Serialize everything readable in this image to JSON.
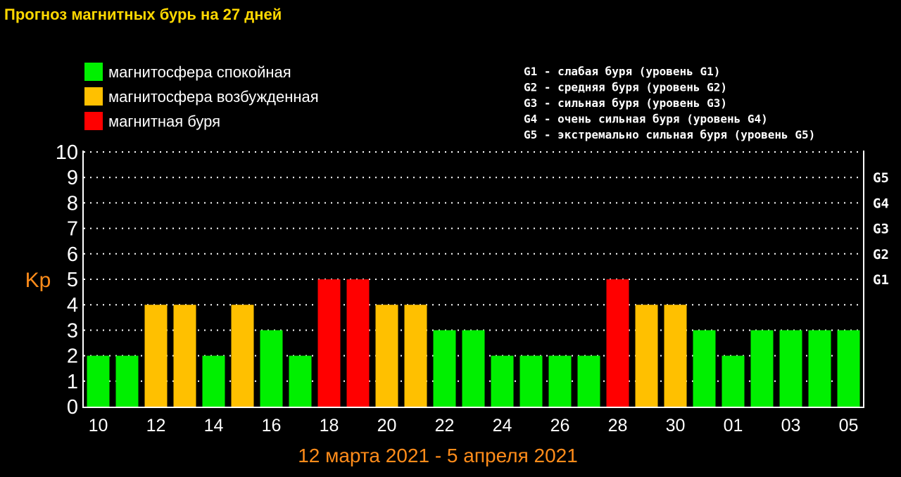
{
  "chart_data": {
    "type": "bar",
    "title": "Прогноз магнитных бурь на 27 дней",
    "subtitle": "12 марта 2021 - 5 апреля 2021",
    "ylabel": "Kp",
    "ylim": [
      0,
      10
    ],
    "yticks": [
      "0",
      "1",
      "2",
      "3",
      "4",
      "5",
      "6",
      "7",
      "8",
      "9",
      "10"
    ],
    "xtick_labels": [
      "10",
      "12",
      "14",
      "16",
      "18",
      "20",
      "22",
      "24",
      "26",
      "28",
      "30",
      "01",
      "03",
      "05"
    ],
    "values": [
      2,
      2,
      4,
      4,
      2,
      4,
      3,
      2,
      5,
      5,
      4,
      4,
      3,
      3,
      2,
      2,
      2,
      2,
      5,
      4,
      4,
      3,
      2,
      3,
      3,
      3,
      3
    ],
    "levels": [
      "calm",
      "calm",
      "excited",
      "excited",
      "calm",
      "excited",
      "calm",
      "calm",
      "storm",
      "storm",
      "excited",
      "excited",
      "calm",
      "calm",
      "calm",
      "calm",
      "calm",
      "calm",
      "storm",
      "excited",
      "excited",
      "calm",
      "calm",
      "calm",
      "calm",
      "calm",
      "calm"
    ],
    "legend": [
      {
        "key": "calm",
        "label": "магнитосфера спокойная",
        "color": "#00f000"
      },
      {
        "key": "excited",
        "label": "магнитосфера возбужденная",
        "color": "#ffc000"
      },
      {
        "key": "storm",
        "label": "магнитная буря",
        "color": "#ff0000"
      }
    ],
    "g_scale": [
      {
        "label": "G1",
        "kp": 5,
        "description": "G1 - слабая буря (уровень G1)"
      },
      {
        "label": "G2",
        "kp": 6,
        "description": "G2 - средняя буря (уровень G2)"
      },
      {
        "label": "G3",
        "kp": 7,
        "description": "G3 - сильная буря (уровень G3)"
      },
      {
        "label": "G4",
        "kp": 8,
        "description": "G4 - очень сильная буря (уровень G4)"
      },
      {
        "label": "G5",
        "kp": 9,
        "description": "G5 - экстремально сильная буря (уровень G5)"
      }
    ],
    "grid": true,
    "legend_position": "top"
  }
}
